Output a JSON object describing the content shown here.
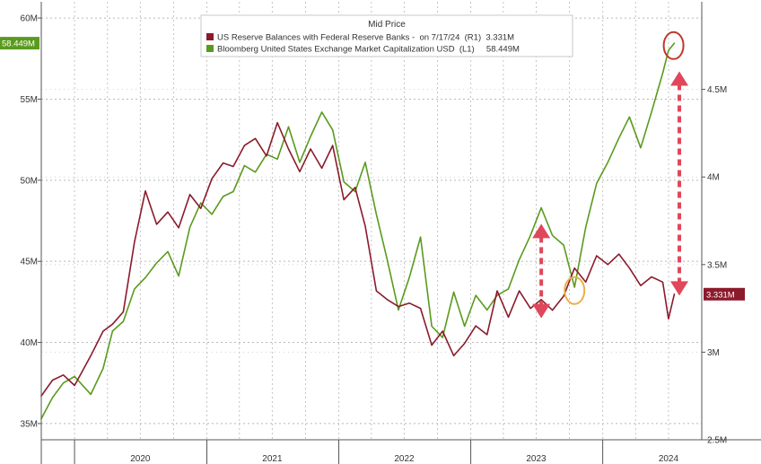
{
  "chart_data": {
    "type": "line",
    "title": "",
    "legend": {
      "title": "Mid Price",
      "placement": "top-center",
      "entries": [
        {
          "label": "US Reserve Balances with Federal Reserve Banks -  on 7/17/24  (R1)  3.331M",
          "color": "#8b1a2b"
        },
        {
          "label": "Bloomberg United States Exchange Market Capitalization USD  (L1)     58.449M",
          "color": "#5a9a1e"
        }
      ]
    },
    "x_axis": {
      "range": [
        "2019-10-01",
        "2024-10-01"
      ],
      "labels": [
        "2020",
        "2021",
        "2022",
        "2023",
        "2024"
      ],
      "label_dates": [
        "2020-07-01",
        "2021-07-01",
        "2022-07-01",
        "2023-07-01",
        "2024-07-01"
      ],
      "separators": [
        "2020-01-01",
        "2021-01-01",
        "2022-01-01",
        "2023-01-01",
        "2024-01-01"
      ]
    },
    "y_left": {
      "range": [
        34,
        61
      ],
      "ticks": [
        35,
        40,
        45,
        50,
        55,
        60
      ],
      "tick_labels": [
        "35M",
        "40M",
        "45M",
        "50M",
        "55M",
        "60M"
      ],
      "last_value_label": "58.449M",
      "last_value": 58.449
    },
    "y_right": {
      "range": [
        2.5,
        5.0
      ],
      "ticks": [
        2.5,
        3.0,
        3.5,
        4.0,
        4.5
      ],
      "tick_labels": [
        "2.5M",
        "3M",
        "3.5M",
        "4M",
        "4.5M"
      ],
      "last_value_label": "3.331M",
      "last_value": 3.331
    },
    "grid": true,
    "series": [
      {
        "name": "Bloomberg United States Exchange Market Capitalization USD",
        "axis": "left",
        "color": "#5a9a1e",
        "points": [
          [
            "2019-10-01",
            35.3
          ],
          [
            "2019-11-01",
            36.6
          ],
          [
            "2019-12-01",
            37.5
          ],
          [
            "2020-01-01",
            37.9
          ],
          [
            "2020-02-15",
            36.8
          ],
          [
            "2020-03-20",
            38.4
          ],
          [
            "2020-04-15",
            40.7
          ],
          [
            "2020-05-15",
            41.3
          ],
          [
            "2020-06-15",
            43.3
          ],
          [
            "2020-07-15",
            44.0
          ],
          [
            "2020-08-15",
            44.9
          ],
          [
            "2020-09-15",
            45.6
          ],
          [
            "2020-10-15",
            44.1
          ],
          [
            "2020-11-15",
            47.1
          ],
          [
            "2020-12-15",
            48.6
          ],
          [
            "2021-01-15",
            47.9
          ],
          [
            "2021-02-15",
            49.0
          ],
          [
            "2021-03-15",
            49.3
          ],
          [
            "2021-04-15",
            50.9
          ],
          [
            "2021-05-15",
            50.5
          ],
          [
            "2021-06-15",
            51.6
          ],
          [
            "2021-07-15",
            51.3
          ],
          [
            "2021-08-15",
            53.3
          ],
          [
            "2021-09-15",
            51.1
          ],
          [
            "2021-10-15",
            52.7
          ],
          [
            "2021-11-15",
            54.2
          ],
          [
            "2021-12-15",
            53.1
          ],
          [
            "2022-01-15",
            49.9
          ],
          [
            "2022-02-15",
            49.3
          ],
          [
            "2022-03-15",
            51.1
          ],
          [
            "2022-04-15",
            47.9
          ],
          [
            "2022-05-15",
            45.1
          ],
          [
            "2022-06-15",
            42.0
          ],
          [
            "2022-07-15",
            44.0
          ],
          [
            "2022-08-15",
            46.5
          ],
          [
            "2022-09-15",
            41.0
          ],
          [
            "2022-10-15",
            40.3
          ],
          [
            "2022-11-15",
            43.1
          ],
          [
            "2022-12-15",
            41.0
          ],
          [
            "2023-01-15",
            42.9
          ],
          [
            "2023-02-15",
            42.0
          ],
          [
            "2023-03-15",
            42.9
          ],
          [
            "2023-04-15",
            43.3
          ],
          [
            "2023-05-15",
            45.1
          ],
          [
            "2023-06-15",
            46.6
          ],
          [
            "2023-07-15",
            48.3
          ],
          [
            "2023-08-15",
            46.6
          ],
          [
            "2023-09-15",
            46.0
          ],
          [
            "2023-10-15",
            43.4
          ],
          [
            "2023-11-15",
            47.1
          ],
          [
            "2023-12-15",
            49.8
          ],
          [
            "2024-01-15",
            51.1
          ],
          [
            "2024-02-15",
            52.6
          ],
          [
            "2024-03-15",
            53.9
          ],
          [
            "2024-04-15",
            52.0
          ],
          [
            "2024-05-15",
            54.2
          ],
          [
            "2024-06-15",
            56.6
          ],
          [
            "2024-07-01",
            58.0
          ],
          [
            "2024-07-17",
            58.449
          ]
        ]
      },
      {
        "name": "US Reserve Balances with Federal Reserve Banks",
        "axis": "right",
        "color": "#8b1a2b",
        "points": [
          [
            "2019-10-01",
            2.75
          ],
          [
            "2019-11-01",
            2.84
          ],
          [
            "2019-12-01",
            2.87
          ],
          [
            "2020-01-01",
            2.81
          ],
          [
            "2020-02-15",
            2.98
          ],
          [
            "2020-03-20",
            3.12
          ],
          [
            "2020-04-15",
            3.16
          ],
          [
            "2020-05-15",
            3.23
          ],
          [
            "2020-06-15",
            3.63
          ],
          [
            "2020-07-15",
            3.92
          ],
          [
            "2020-08-15",
            3.73
          ],
          [
            "2020-09-15",
            3.8
          ],
          [
            "2020-10-15",
            3.71
          ],
          [
            "2020-11-15",
            3.9
          ],
          [
            "2020-12-15",
            3.82
          ],
          [
            "2021-01-15",
            3.99
          ],
          [
            "2021-02-15",
            4.08
          ],
          [
            "2021-03-15",
            4.06
          ],
          [
            "2021-04-15",
            4.18
          ],
          [
            "2021-05-15",
            4.22
          ],
          [
            "2021-06-15",
            4.12
          ],
          [
            "2021-07-15",
            4.31
          ],
          [
            "2021-08-15",
            4.16
          ],
          [
            "2021-09-15",
            4.03
          ],
          [
            "2021-10-15",
            4.16
          ],
          [
            "2021-11-15",
            4.05
          ],
          [
            "2021-12-15",
            4.18
          ],
          [
            "2022-01-15",
            3.87
          ],
          [
            "2022-02-15",
            3.94
          ],
          [
            "2022-03-15",
            3.72
          ],
          [
            "2022-04-15",
            3.35
          ],
          [
            "2022-05-15",
            3.3
          ],
          [
            "2022-06-15",
            3.26
          ],
          [
            "2022-07-15",
            3.28
          ],
          [
            "2022-08-15",
            3.25
          ],
          [
            "2022-09-15",
            3.04
          ],
          [
            "2022-10-15",
            3.12
          ],
          [
            "2022-11-15",
            2.98
          ],
          [
            "2022-12-15",
            3.05
          ],
          [
            "2023-01-15",
            3.15
          ],
          [
            "2023-02-15",
            3.1
          ],
          [
            "2023-03-15",
            3.35
          ],
          [
            "2023-04-15",
            3.2
          ],
          [
            "2023-05-15",
            3.35
          ],
          [
            "2023-06-15",
            3.25
          ],
          [
            "2023-07-15",
            3.3
          ],
          [
            "2023-08-15",
            3.24
          ],
          [
            "2023-09-15",
            3.32
          ],
          [
            "2023-10-15",
            3.48
          ],
          [
            "2023-11-15",
            3.4
          ],
          [
            "2023-12-15",
            3.55
          ],
          [
            "2024-01-15",
            3.5
          ],
          [
            "2024-02-15",
            3.56
          ],
          [
            "2024-03-15",
            3.48
          ],
          [
            "2024-04-15",
            3.38
          ],
          [
            "2024-05-15",
            3.43
          ],
          [
            "2024-06-15",
            3.4
          ],
          [
            "2024-07-01",
            3.19
          ],
          [
            "2024-07-17",
            3.331
          ]
        ]
      }
    ],
    "annotations": [
      {
        "type": "double-arrow",
        "color": "#e0475a",
        "style": "dashed",
        "date": "2023-07-15",
        "from": {
          "axis": "left",
          "value": 47.2
        },
        "to": {
          "axis": "left",
          "value": 41.6
        }
      },
      {
        "type": "double-arrow",
        "color": "#e0475a",
        "style": "dashed",
        "date": "2024-07-31",
        "from": {
          "axis": "left",
          "value": 56.6
        },
        "to": {
          "axis": "left",
          "value": 43.0
        }
      },
      {
        "type": "ellipse",
        "color": "#e8b04a",
        "date": "2023-10-15",
        "axis": "left",
        "value": 43.2
      },
      {
        "type": "ellipse",
        "color": "#c0392b",
        "date": "2024-07-15",
        "axis": "left",
        "value": 58.3
      }
    ]
  }
}
